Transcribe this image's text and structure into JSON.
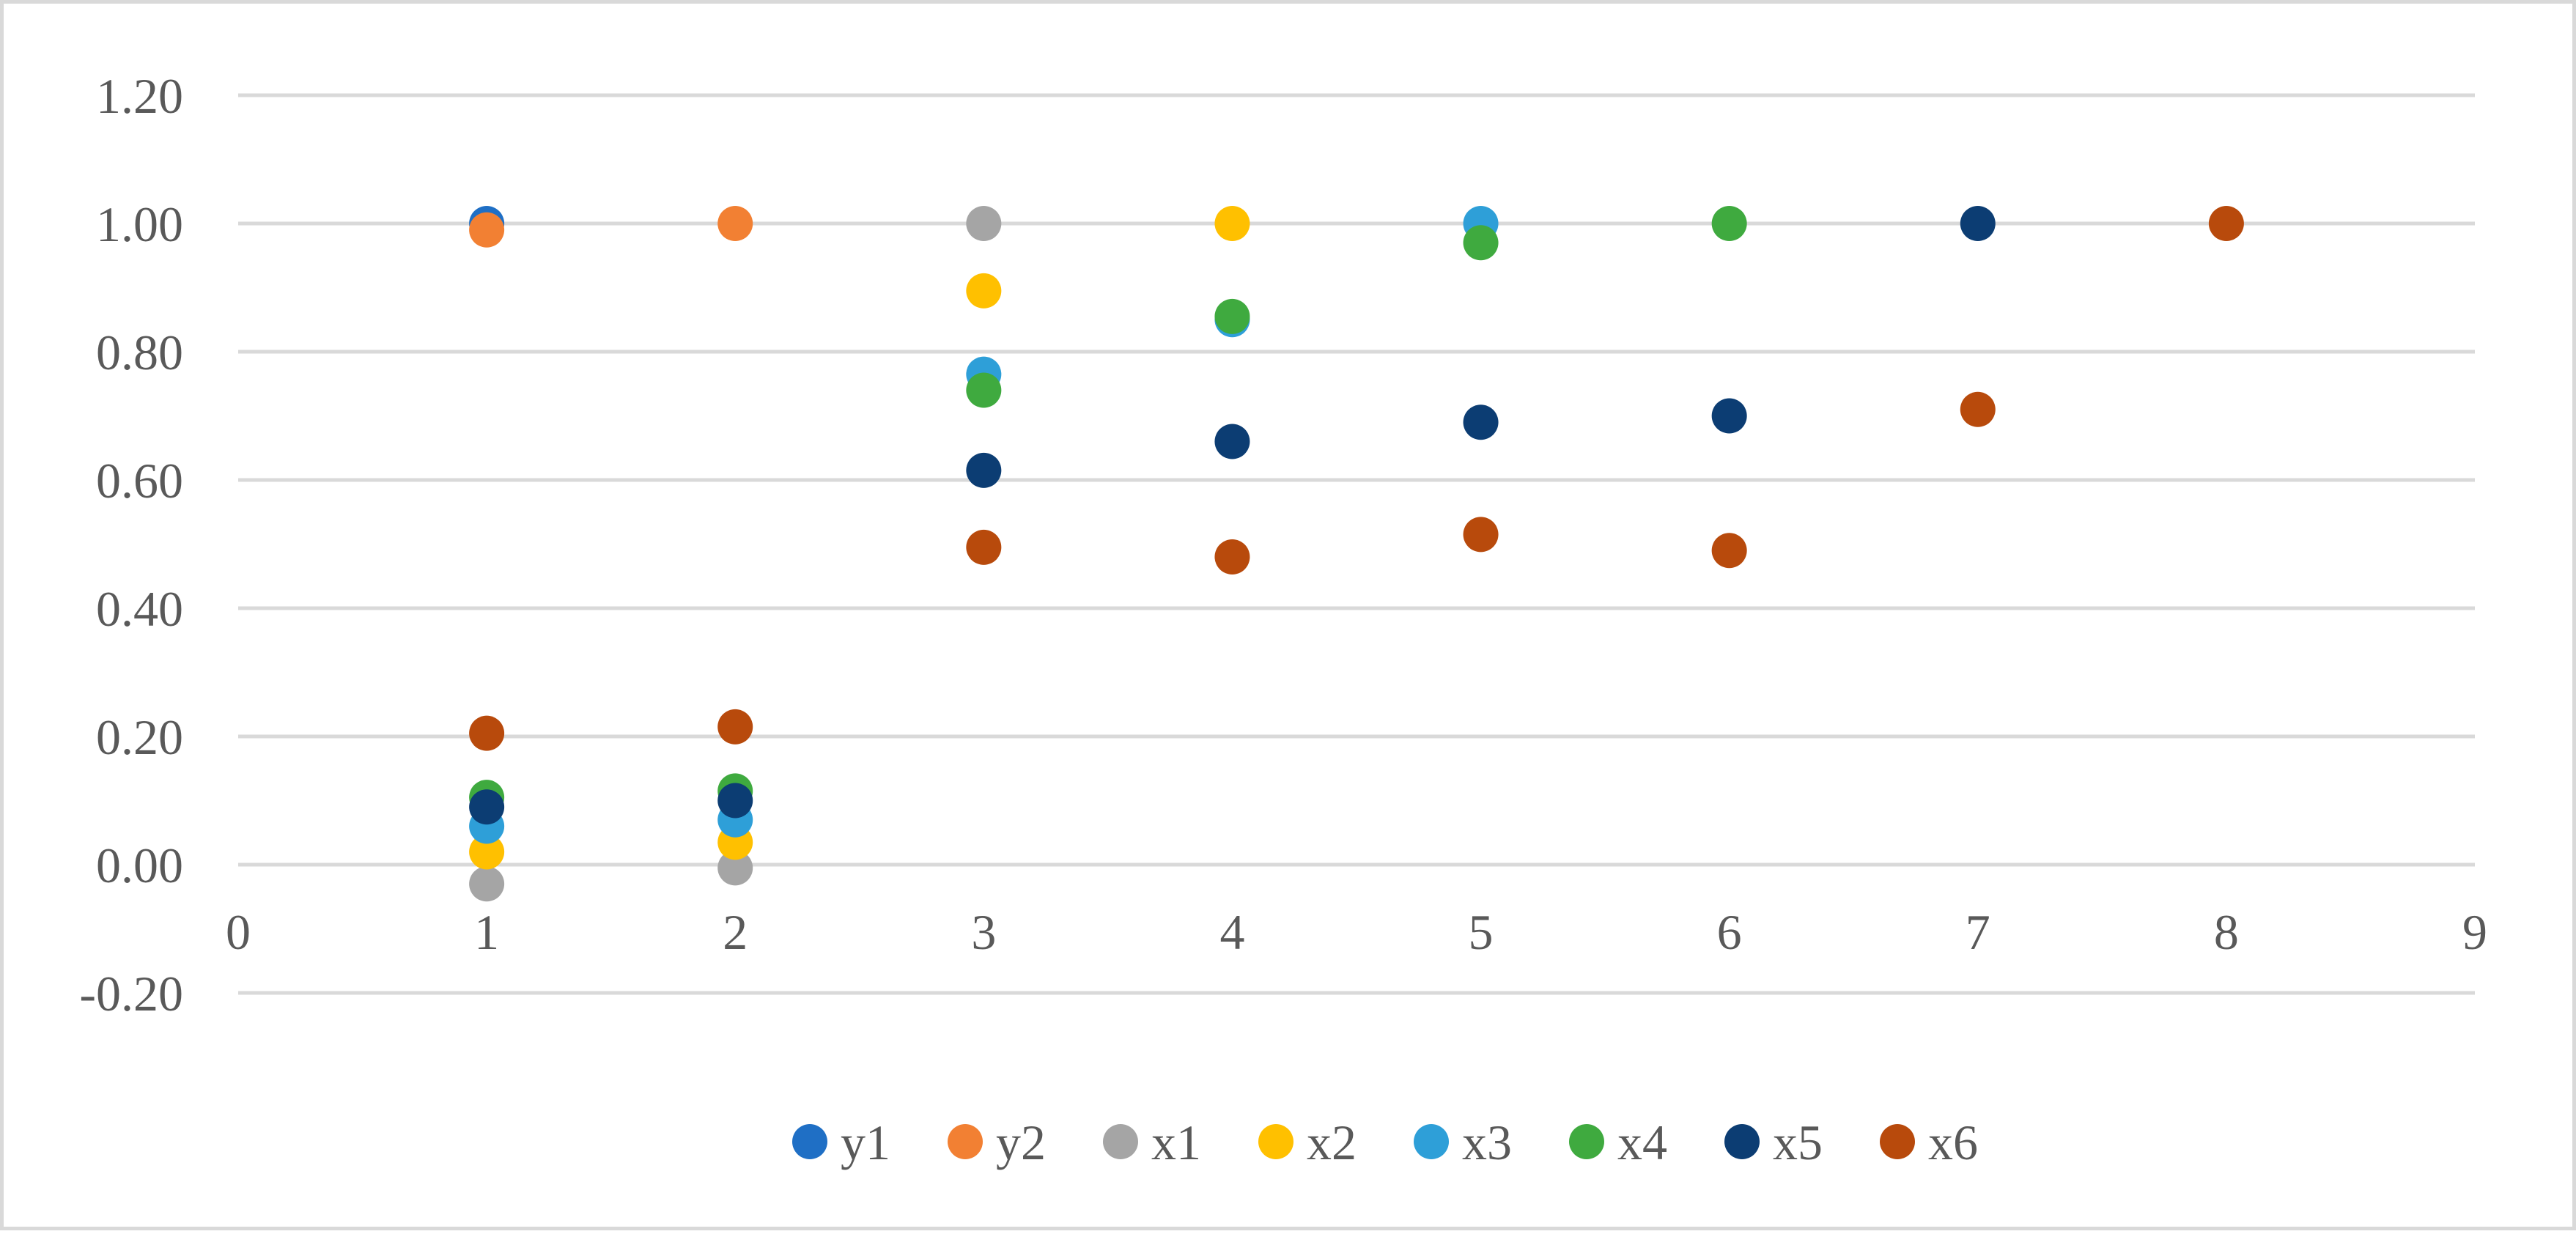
{
  "chart_data": {
    "type": "scatter",
    "title": "",
    "xlabel": "",
    "ylabel": "",
    "xlim": [
      0,
      9
    ],
    "ylim": [
      -0.2,
      1.2
    ],
    "x_ticks": [
      0,
      1,
      2,
      3,
      4,
      5,
      6,
      7,
      8,
      9
    ],
    "x_tick_labels": [
      "0",
      "1",
      "2",
      "3",
      "4",
      "5",
      "6",
      "7",
      "8",
      "9"
    ],
    "y_ticks": [
      -0.2,
      0,
      0.2,
      0.4,
      0.6,
      0.8,
      1.0,
      1.2
    ],
    "y_tick_labels": [
      "-0.20",
      "0.00",
      "0.20",
      "0.40",
      "0.60",
      "0.80",
      "1.00",
      "1.20"
    ],
    "grid": "horizontal",
    "legend_position": "bottom",
    "series": [
      {
        "name": "y1",
        "color": "#1f6fc5",
        "x": [
          1
        ],
        "y": [
          1.0
        ]
      },
      {
        "name": "y2",
        "color": "#f28033",
        "x": [
          1,
          2
        ],
        "y": [
          0.99,
          1.0
        ]
      },
      {
        "name": "x1",
        "color": "#a5a5a5",
        "x": [
          1,
          2,
          3
        ],
        "y": [
          -0.03,
          -0.005,
          1.0
        ]
      },
      {
        "name": "x2",
        "color": "#ffc000",
        "x": [
          1,
          2,
          3,
          4
        ],
        "y": [
          0.02,
          0.035,
          0.895,
          1.0
        ]
      },
      {
        "name": "x3",
        "color": "#2e9fd8",
        "x": [
          1,
          2,
          3,
          4,
          5
        ],
        "y": [
          0.06,
          0.07,
          0.765,
          0.85,
          1.0
        ]
      },
      {
        "name": "x4",
        "color": "#3faa3f",
        "x": [
          1,
          2,
          3,
          4,
          5,
          6
        ],
        "y": [
          0.105,
          0.115,
          0.74,
          0.855,
          0.97,
          1.0
        ]
      },
      {
        "name": "x5",
        "color": "#0c3d73",
        "x": [
          1,
          2,
          3,
          4,
          5,
          6,
          7
        ],
        "y": [
          0.09,
          0.1,
          0.615,
          0.66,
          0.69,
          0.7,
          1.0
        ]
      },
      {
        "name": "x6",
        "color": "#b84a0c",
        "x": [
          1,
          2,
          3,
          4,
          5,
          6,
          7,
          8
        ],
        "y": [
          0.205,
          0.215,
          0.495,
          0.48,
          0.515,
          0.49,
          0.71,
          1.0
        ]
      }
    ]
  }
}
